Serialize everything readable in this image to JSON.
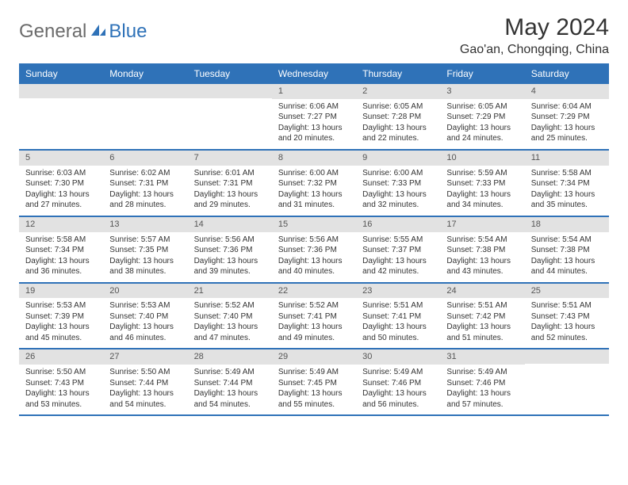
{
  "logo": {
    "text1": "General",
    "text2": "Blue"
  },
  "title": "May 2024",
  "location": "Gao'an, Chongqing, China",
  "colors": {
    "header_bg": "#2f72b8",
    "header_text": "#ffffff",
    "daynum_bg": "#e2e2e2",
    "border": "#2f72b8",
    "body_text": "#333333",
    "logo_gray": "#6b6b6b",
    "logo_blue": "#2f72b8"
  },
  "weekdays": [
    "Sunday",
    "Monday",
    "Tuesday",
    "Wednesday",
    "Thursday",
    "Friday",
    "Saturday"
  ],
  "weeks": [
    [
      null,
      null,
      null,
      {
        "n": "1",
        "sr": "Sunrise: 6:06 AM",
        "ss": "Sunset: 7:27 PM",
        "d1": "Daylight: 13 hours",
        "d2": "and 20 minutes."
      },
      {
        "n": "2",
        "sr": "Sunrise: 6:05 AM",
        "ss": "Sunset: 7:28 PM",
        "d1": "Daylight: 13 hours",
        "d2": "and 22 minutes."
      },
      {
        "n": "3",
        "sr": "Sunrise: 6:05 AM",
        "ss": "Sunset: 7:29 PM",
        "d1": "Daylight: 13 hours",
        "d2": "and 24 minutes."
      },
      {
        "n": "4",
        "sr": "Sunrise: 6:04 AM",
        "ss": "Sunset: 7:29 PM",
        "d1": "Daylight: 13 hours",
        "d2": "and 25 minutes."
      }
    ],
    [
      {
        "n": "5",
        "sr": "Sunrise: 6:03 AM",
        "ss": "Sunset: 7:30 PM",
        "d1": "Daylight: 13 hours",
        "d2": "and 27 minutes."
      },
      {
        "n": "6",
        "sr": "Sunrise: 6:02 AM",
        "ss": "Sunset: 7:31 PM",
        "d1": "Daylight: 13 hours",
        "d2": "and 28 minutes."
      },
      {
        "n": "7",
        "sr": "Sunrise: 6:01 AM",
        "ss": "Sunset: 7:31 PM",
        "d1": "Daylight: 13 hours",
        "d2": "and 29 minutes."
      },
      {
        "n": "8",
        "sr": "Sunrise: 6:00 AM",
        "ss": "Sunset: 7:32 PM",
        "d1": "Daylight: 13 hours",
        "d2": "and 31 minutes."
      },
      {
        "n": "9",
        "sr": "Sunrise: 6:00 AM",
        "ss": "Sunset: 7:33 PM",
        "d1": "Daylight: 13 hours",
        "d2": "and 32 minutes."
      },
      {
        "n": "10",
        "sr": "Sunrise: 5:59 AM",
        "ss": "Sunset: 7:33 PM",
        "d1": "Daylight: 13 hours",
        "d2": "and 34 minutes."
      },
      {
        "n": "11",
        "sr": "Sunrise: 5:58 AM",
        "ss": "Sunset: 7:34 PM",
        "d1": "Daylight: 13 hours",
        "d2": "and 35 minutes."
      }
    ],
    [
      {
        "n": "12",
        "sr": "Sunrise: 5:58 AM",
        "ss": "Sunset: 7:34 PM",
        "d1": "Daylight: 13 hours",
        "d2": "and 36 minutes."
      },
      {
        "n": "13",
        "sr": "Sunrise: 5:57 AM",
        "ss": "Sunset: 7:35 PM",
        "d1": "Daylight: 13 hours",
        "d2": "and 38 minutes."
      },
      {
        "n": "14",
        "sr": "Sunrise: 5:56 AM",
        "ss": "Sunset: 7:36 PM",
        "d1": "Daylight: 13 hours",
        "d2": "and 39 minutes."
      },
      {
        "n": "15",
        "sr": "Sunrise: 5:56 AM",
        "ss": "Sunset: 7:36 PM",
        "d1": "Daylight: 13 hours",
        "d2": "and 40 minutes."
      },
      {
        "n": "16",
        "sr": "Sunrise: 5:55 AM",
        "ss": "Sunset: 7:37 PM",
        "d1": "Daylight: 13 hours",
        "d2": "and 42 minutes."
      },
      {
        "n": "17",
        "sr": "Sunrise: 5:54 AM",
        "ss": "Sunset: 7:38 PM",
        "d1": "Daylight: 13 hours",
        "d2": "and 43 minutes."
      },
      {
        "n": "18",
        "sr": "Sunrise: 5:54 AM",
        "ss": "Sunset: 7:38 PM",
        "d1": "Daylight: 13 hours",
        "d2": "and 44 minutes."
      }
    ],
    [
      {
        "n": "19",
        "sr": "Sunrise: 5:53 AM",
        "ss": "Sunset: 7:39 PM",
        "d1": "Daylight: 13 hours",
        "d2": "and 45 minutes."
      },
      {
        "n": "20",
        "sr": "Sunrise: 5:53 AM",
        "ss": "Sunset: 7:40 PM",
        "d1": "Daylight: 13 hours",
        "d2": "and 46 minutes."
      },
      {
        "n": "21",
        "sr": "Sunrise: 5:52 AM",
        "ss": "Sunset: 7:40 PM",
        "d1": "Daylight: 13 hours",
        "d2": "and 47 minutes."
      },
      {
        "n": "22",
        "sr": "Sunrise: 5:52 AM",
        "ss": "Sunset: 7:41 PM",
        "d1": "Daylight: 13 hours",
        "d2": "and 49 minutes."
      },
      {
        "n": "23",
        "sr": "Sunrise: 5:51 AM",
        "ss": "Sunset: 7:41 PM",
        "d1": "Daylight: 13 hours",
        "d2": "and 50 minutes."
      },
      {
        "n": "24",
        "sr": "Sunrise: 5:51 AM",
        "ss": "Sunset: 7:42 PM",
        "d1": "Daylight: 13 hours",
        "d2": "and 51 minutes."
      },
      {
        "n": "25",
        "sr": "Sunrise: 5:51 AM",
        "ss": "Sunset: 7:43 PM",
        "d1": "Daylight: 13 hours",
        "d2": "and 52 minutes."
      }
    ],
    [
      {
        "n": "26",
        "sr": "Sunrise: 5:50 AM",
        "ss": "Sunset: 7:43 PM",
        "d1": "Daylight: 13 hours",
        "d2": "and 53 minutes."
      },
      {
        "n": "27",
        "sr": "Sunrise: 5:50 AM",
        "ss": "Sunset: 7:44 PM",
        "d1": "Daylight: 13 hours",
        "d2": "and 54 minutes."
      },
      {
        "n": "28",
        "sr": "Sunrise: 5:49 AM",
        "ss": "Sunset: 7:44 PM",
        "d1": "Daylight: 13 hours",
        "d2": "and 54 minutes."
      },
      {
        "n": "29",
        "sr": "Sunrise: 5:49 AM",
        "ss": "Sunset: 7:45 PM",
        "d1": "Daylight: 13 hours",
        "d2": "and 55 minutes."
      },
      {
        "n": "30",
        "sr": "Sunrise: 5:49 AM",
        "ss": "Sunset: 7:46 PM",
        "d1": "Daylight: 13 hours",
        "d2": "and 56 minutes."
      },
      {
        "n": "31",
        "sr": "Sunrise: 5:49 AM",
        "ss": "Sunset: 7:46 PM",
        "d1": "Daylight: 13 hours",
        "d2": "and 57 minutes."
      },
      null
    ]
  ]
}
